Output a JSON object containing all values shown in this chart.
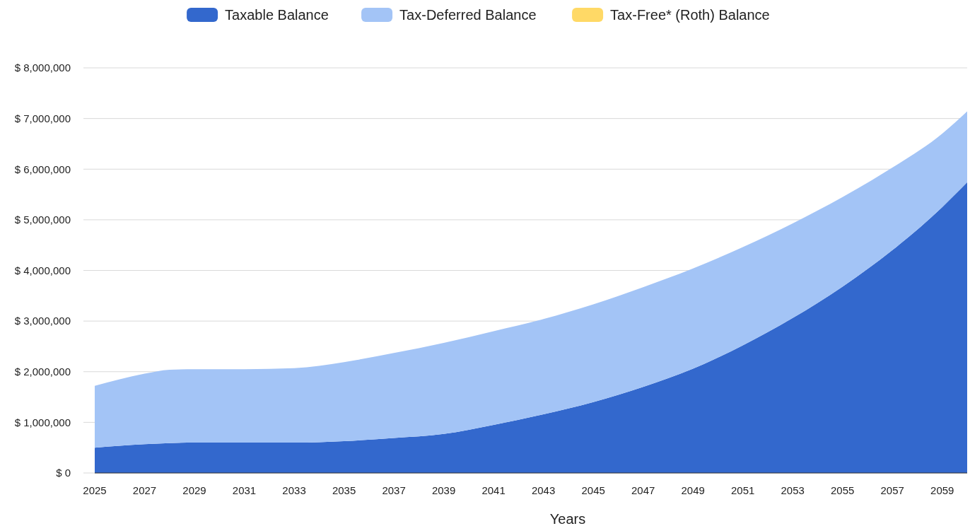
{
  "chart_data": {
    "type": "area",
    "stacked": true,
    "xlabel": "Years",
    "legend": "top",
    "grid": "y",
    "x": [
      2025,
      2027,
      2028,
      2029,
      2031,
      2033,
      2035,
      2037,
      2039,
      2041,
      2043,
      2045,
      2047,
      2049,
      2051,
      2053,
      2055,
      2057,
      2059,
      2060
    ],
    "xlim": [
      2025,
      2060
    ],
    "xticks": [
      2025,
      2027,
      2029,
      2031,
      2033,
      2035,
      2037,
      2039,
      2041,
      2043,
      2045,
      2047,
      2049,
      2051,
      2053,
      2055,
      2057,
      2059
    ],
    "ylim": [
      0,
      8000000
    ],
    "yticks": [
      {
        "value": 0,
        "label": "$ 0"
      },
      {
        "value": 1000000,
        "label": "$ 1,000,000"
      },
      {
        "value": 2000000,
        "label": "$ 2,000,000"
      },
      {
        "value": 3000000,
        "label": "$ 3,000,000"
      },
      {
        "value": 4000000,
        "label": "$ 4,000,000"
      },
      {
        "value": 5000000,
        "label": "$ 5,000,000"
      },
      {
        "value": 6000000,
        "label": "$ 6,000,000"
      },
      {
        "value": 7000000,
        "label": "$ 7,000,000"
      },
      {
        "value": 8000000,
        "label": "$ 8,000,000"
      }
    ],
    "series": [
      {
        "name": "Taxable Balance",
        "color": "#3368cd",
        "values": [
          500000,
          570000,
          590000,
          600000,
          600000,
          600000,
          630000,
          690000,
          770000,
          950000,
          1160000,
          1400000,
          1700000,
          2060000,
          2520000,
          3060000,
          3680000,
          4400000,
          5250000,
          5740000
        ]
      },
      {
        "name": "Tax-Deferred Balance",
        "color": "#a3c4f6",
        "values": [
          1220000,
          1390000,
          1450000,
          1450000,
          1450000,
          1470000,
          1560000,
          1680000,
          1800000,
          1850000,
          1880000,
          1930000,
          1970000,
          1980000,
          1940000,
          1870000,
          1770000,
          1630000,
          1450000,
          1400000
        ]
      },
      {
        "name": "Tax-Free* (Roth) Balance",
        "color": "#ffd966",
        "values": [
          null,
          null,
          null,
          null,
          null,
          null,
          null,
          null,
          null,
          null,
          null,
          null,
          null,
          null,
          null,
          null,
          null,
          null,
          null,
          null
        ]
      }
    ]
  }
}
